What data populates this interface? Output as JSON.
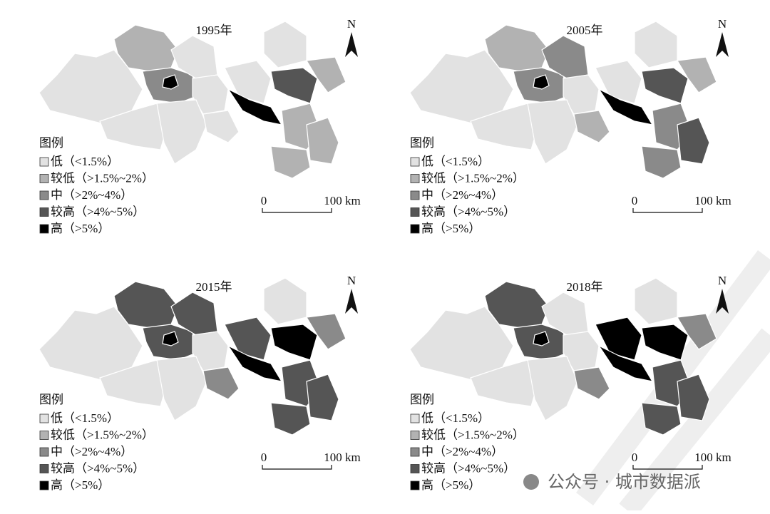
{
  "panels": [
    {
      "title": "1995年"
    },
    {
      "title": "2005年"
    },
    {
      "title": "2015年"
    },
    {
      "title": "2018年"
    }
  ],
  "legend": {
    "title": "图例",
    "items": [
      {
        "label": "低（<1.5%）",
        "color": "#e2e2e2"
      },
      {
        "label": "较低（>1.5%~2%）",
        "color": "#b2b2b2"
      },
      {
        "label": "中（>2%~4%）",
        "color": "#8a8a8a"
      },
      {
        "label": "较高（>4%~5%）",
        "color": "#555555"
      },
      {
        "label": "高（>5%）",
        "color": "#000000"
      }
    ]
  },
  "scale": {
    "start": "0",
    "end": "100 km"
  },
  "north": "N",
  "watermark": "公众号 · 城市数据派"
}
